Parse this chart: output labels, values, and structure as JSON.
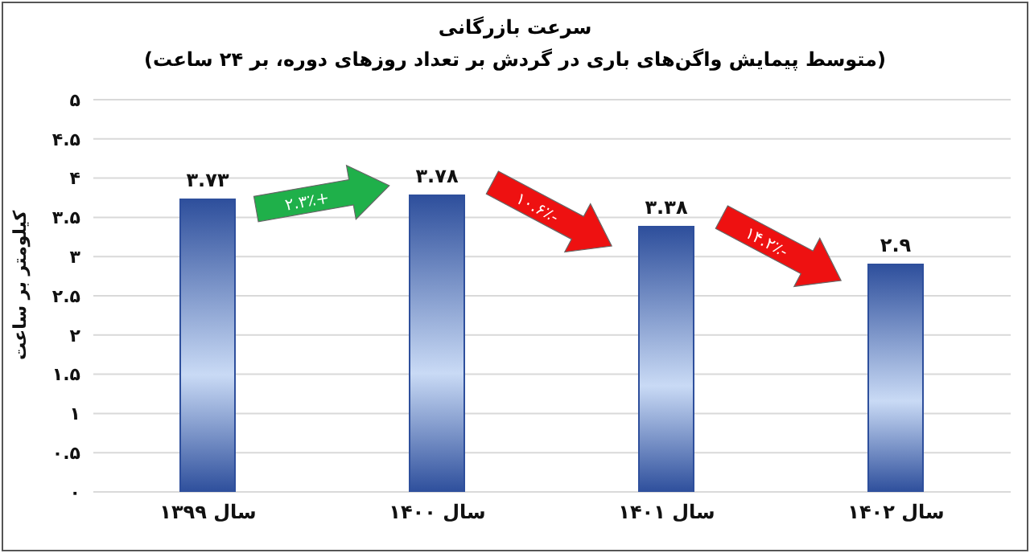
{
  "chart_data": {
    "type": "bar",
    "title": "سرعت بازرگانی",
    "subtitle": "(متوسط پیمایش واگن‌های باری در گردش بر تعداد روزهای دوره، بر ۲۴ ساعت)",
    "ylabel": "کیلومتر بر ساعت",
    "categories": [
      "سال ۱۳۹۹",
      "سال ۱۴۰۰",
      "سال ۱۴۰۱",
      "سال ۱۴۰۲"
    ],
    "values": [
      3.73,
      3.78,
      3.38,
      2.9
    ],
    "value_labels": [
      "۳.۷۳",
      "۳.۷۸",
      "۳.۳۸",
      "۲.۹"
    ],
    "color": "#2e4f9c",
    "ylim": [
      0,
      5
    ],
    "yticks": [
      {
        "value": 0,
        "label": "۰"
      },
      {
        "value": 0.5,
        "label": "۰.۵"
      },
      {
        "value": 1,
        "label": "۱"
      },
      {
        "value": 1.5,
        "label": "۱.۵"
      },
      {
        "value": 2,
        "label": "۲"
      },
      {
        "value": 2.5,
        "label": "۲.۵"
      },
      {
        "value": 3,
        "label": "۳"
      },
      {
        "value": 3.5,
        "label": "۳.۵"
      },
      {
        "value": 4,
        "label": "۴"
      },
      {
        "value": 4.5,
        "label": "۴.۵"
      },
      {
        "value": 5,
        "label": "۵"
      }
    ],
    "grid": "y",
    "annotations": [
      "+۲.۳٪",
      "-۱۰.۶٪",
      "-۱۴.۲٪"
    ]
  }
}
